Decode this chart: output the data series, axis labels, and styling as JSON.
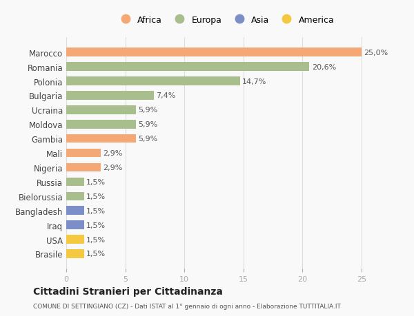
{
  "categories": [
    "Brasile",
    "USA",
    "Iraq",
    "Bangladesh",
    "Bielorussia",
    "Russia",
    "Nigeria",
    "Mali",
    "Gambia",
    "Moldova",
    "Ucraina",
    "Bulgaria",
    "Polonia",
    "Romania",
    "Marocco"
  ],
  "values": [
    1.5,
    1.5,
    1.5,
    1.5,
    1.5,
    1.5,
    2.9,
    2.9,
    5.9,
    5.9,
    5.9,
    7.4,
    14.7,
    20.6,
    25.0
  ],
  "labels": [
    "1,5%",
    "1,5%",
    "1,5%",
    "1,5%",
    "1,5%",
    "1,5%",
    "2,9%",
    "2,9%",
    "5,9%",
    "5,9%",
    "5,9%",
    "7,4%",
    "14,7%",
    "20,6%",
    "25,0%"
  ],
  "colors": [
    "#F5C842",
    "#F5C842",
    "#7B8EC8",
    "#7B8EC8",
    "#A8BE8C",
    "#A8BE8C",
    "#F4A875",
    "#F4A875",
    "#F4A875",
    "#A8BE8C",
    "#A8BE8C",
    "#A8BE8C",
    "#A8BE8C",
    "#A8BE8C",
    "#F4A875"
  ],
  "legend_labels": [
    "Africa",
    "Europa",
    "Asia",
    "America"
  ],
  "legend_colors": [
    "#F4A875",
    "#A8BE8C",
    "#7B8EC8",
    "#F5C842"
  ],
  "title": "Cittadini Stranieri per Cittadinanza",
  "subtitle": "COMUNE DI SETTINGIANO (CZ) - Dati ISTAT al 1° gennaio di ogni anno - Elaborazione TUTTITALIA.IT",
  "xlim": [
    0,
    27
  ],
  "xticks": [
    0,
    5,
    10,
    15,
    20,
    25
  ],
  "background_color": "#f9f9f9"
}
